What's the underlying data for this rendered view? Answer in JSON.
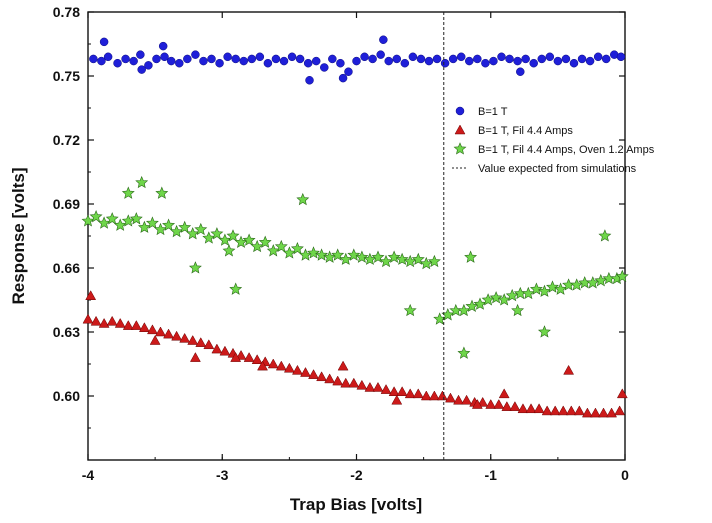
{
  "chart_data": {
    "type": "scatter",
    "xlabel": "Trap Bias [volts]",
    "ylabel": "Response [volts]",
    "xlim": [
      -4,
      0
    ],
    "ylim": [
      0.57,
      0.78
    ],
    "x_ticks": [
      "-4",
      "-3",
      "-2",
      "-1",
      "0"
    ],
    "y_ticks": [
      "0.60",
      "0.63",
      "0.66",
      "0.69",
      "0.72",
      "0.75",
      "0.78"
    ],
    "grid": false,
    "legend_position": "right",
    "colors": {
      "blue": "#1f1fd8",
      "red": "#cc1a1a",
      "green": "#6fd64a",
      "reference": "#222222"
    },
    "series": [
      {
        "name": "B=1 T",
        "marker": "circle",
        "color": "#1f1fd8",
        "x": [
          -3.96,
          -3.9,
          -3.85,
          -3.78,
          -3.72,
          -3.66,
          -3.61,
          -3.55,
          -3.49,
          -3.43,
          -3.38,
          -3.32,
          -3.26,
          -3.2,
          -3.14,
          -3.08,
          -3.02,
          -2.96,
          -2.9,
          -2.84,
          -2.78,
          -2.72,
          -2.66,
          -2.6,
          -2.54,
          -2.48,
          -2.42,
          -2.36,
          -2.3,
          -2.24,
          -2.18,
          -2.12,
          -2.06,
          -2.0,
          -1.94,
          -1.88,
          -1.82,
          -1.76,
          -1.7,
          -1.64,
          -1.58,
          -1.52,
          -1.46,
          -1.4,
          -1.34,
          -1.28,
          -1.22,
          -1.16,
          -1.1,
          -1.04,
          -0.98,
          -0.92,
          -0.86,
          -0.8,
          -0.74,
          -0.68,
          -0.62,
          -0.56,
          -0.5,
          -0.44,
          -0.38,
          -0.32,
          -0.26,
          -0.2,
          -0.14,
          -0.08,
          -0.03,
          -3.88,
          -3.6,
          -3.44,
          -2.35,
          -2.1,
          -1.8,
          -0.78
        ],
        "y": [
          0.758,
          0.757,
          0.759,
          0.756,
          0.758,
          0.757,
          0.76,
          0.755,
          0.758,
          0.759,
          0.757,
          0.756,
          0.758,
          0.76,
          0.757,
          0.758,
          0.756,
          0.759,
          0.758,
          0.757,
          0.758,
          0.759,
          0.756,
          0.758,
          0.757,
          0.759,
          0.758,
          0.756,
          0.757,
          0.754,
          0.758,
          0.756,
          0.752,
          0.757,
          0.759,
          0.758,
          0.76,
          0.757,
          0.758,
          0.756,
          0.759,
          0.758,
          0.757,
          0.758,
          0.756,
          0.758,
          0.759,
          0.757,
          0.758,
          0.756,
          0.757,
          0.759,
          0.758,
          0.757,
          0.758,
          0.756,
          0.758,
          0.759,
          0.757,
          0.758,
          0.756,
          0.758,
          0.757,
          0.759,
          0.758,
          0.76,
          0.759,
          0.766,
          0.753,
          0.764,
          0.748,
          0.749,
          0.767,
          0.752
        ]
      },
      {
        "name": "B=1 T, Fil 4.4 Amps",
        "marker": "triangle",
        "color": "#cc1a1a",
        "x": [
          -4.0,
          -3.94,
          -3.88,
          -3.82,
          -3.76,
          -3.7,
          -3.64,
          -3.58,
          -3.52,
          -3.46,
          -3.4,
          -3.34,
          -3.28,
          -3.22,
          -3.16,
          -3.1,
          -3.04,
          -2.98,
          -2.92,
          -2.86,
          -2.8,
          -2.74,
          -2.68,
          -2.62,
          -2.56,
          -2.5,
          -2.44,
          -2.38,
          -2.32,
          -2.26,
          -2.2,
          -2.14,
          -2.08,
          -2.02,
          -1.96,
          -1.9,
          -1.84,
          -1.78,
          -1.72,
          -1.66,
          -1.6,
          -1.54,
          -1.48,
          -1.42,
          -1.36,
          -1.3,
          -1.24,
          -1.18,
          -1.12,
          -1.06,
          -1.0,
          -0.94,
          -0.88,
          -0.82,
          -0.76,
          -0.7,
          -0.64,
          -0.58,
          -0.52,
          -0.46,
          -0.4,
          -0.34,
          -0.28,
          -0.22,
          -0.16,
          -0.1,
          -0.04,
          -3.98,
          -3.5,
          -3.2,
          -2.9,
          -2.7,
          -2.1,
          -1.7,
          -1.1,
          -0.9,
          -0.42,
          -0.02
        ],
        "y": [
          0.636,
          0.635,
          0.634,
          0.635,
          0.634,
          0.633,
          0.633,
          0.632,
          0.631,
          0.63,
          0.629,
          0.628,
          0.627,
          0.626,
          0.625,
          0.624,
          0.622,
          0.621,
          0.62,
          0.619,
          0.618,
          0.617,
          0.616,
          0.615,
          0.614,
          0.613,
          0.612,
          0.611,
          0.61,
          0.609,
          0.608,
          0.607,
          0.606,
          0.606,
          0.605,
          0.604,
          0.604,
          0.603,
          0.602,
          0.602,
          0.601,
          0.601,
          0.6,
          0.6,
          0.6,
          0.599,
          0.598,
          0.598,
          0.597,
          0.597,
          0.596,
          0.596,
          0.595,
          0.595,
          0.594,
          0.594,
          0.594,
          0.593,
          0.593,
          0.593,
          0.593,
          0.593,
          0.592,
          0.592,
          0.592,
          0.592,
          0.593,
          0.647,
          0.626,
          0.618,
          0.618,
          0.614,
          0.614,
          0.598,
          0.596,
          0.601,
          0.612,
          0.601
        ]
      },
      {
        "name": "B=1 T, Fil 4.4 Amps, Oven 1.2 Amps",
        "marker": "star",
        "color": "#6fd64a",
        "x": [
          -4.0,
          -3.94,
          -3.88,
          -3.82,
          -3.76,
          -3.7,
          -3.64,
          -3.58,
          -3.52,
          -3.46,
          -3.4,
          -3.34,
          -3.28,
          -3.22,
          -3.16,
          -3.1,
          -3.04,
          -2.98,
          -2.92,
          -2.86,
          -2.8,
          -2.74,
          -2.68,
          -2.62,
          -2.56,
          -2.5,
          -2.44,
          -2.38,
          -2.32,
          -2.26,
          -2.2,
          -2.14,
          -2.08,
          -2.02,
          -1.96,
          -1.9,
          -1.84,
          -1.78,
          -1.72,
          -1.66,
          -1.6,
          -1.54,
          -1.48,
          -1.42,
          -1.38,
          -1.32,
          -1.26,
          -1.2,
          -1.14,
          -1.08,
          -1.02,
          -0.96,
          -0.9,
          -0.84,
          -0.78,
          -0.72,
          -0.66,
          -0.6,
          -0.54,
          -0.48,
          -0.42,
          -0.36,
          -0.3,
          -0.24,
          -0.18,
          -0.12,
          -0.06,
          -0.02,
          -3.7,
          -3.6,
          -3.45,
          -3.2,
          -2.95,
          -2.9,
          -2.4,
          -1.6,
          -1.2,
          -1.15,
          -0.8,
          -0.6,
          -0.15
        ],
        "y": [
          0.682,
          0.684,
          0.681,
          0.683,
          0.68,
          0.682,
          0.683,
          0.679,
          0.681,
          0.678,
          0.68,
          0.677,
          0.679,
          0.676,
          0.678,
          0.674,
          0.676,
          0.673,
          0.675,
          0.672,
          0.673,
          0.67,
          0.672,
          0.668,
          0.67,
          0.667,
          0.669,
          0.666,
          0.667,
          0.666,
          0.665,
          0.666,
          0.664,
          0.666,
          0.665,
          0.664,
          0.665,
          0.663,
          0.665,
          0.664,
          0.663,
          0.664,
          0.662,
          0.663,
          0.636,
          0.638,
          0.64,
          0.64,
          0.642,
          0.643,
          0.645,
          0.646,
          0.645,
          0.647,
          0.648,
          0.648,
          0.65,
          0.649,
          0.651,
          0.65,
          0.652,
          0.652,
          0.653,
          0.653,
          0.654,
          0.655,
          0.655,
          0.656,
          0.695,
          0.7,
          0.695,
          0.66,
          0.668,
          0.65,
          0.692,
          0.64,
          0.62,
          0.665,
          0.64,
          0.63,
          0.675
        ]
      }
    ],
    "reference_line": {
      "label": "Value expected from simulations",
      "x": -1.35,
      "style": "dashed vertical"
    }
  }
}
